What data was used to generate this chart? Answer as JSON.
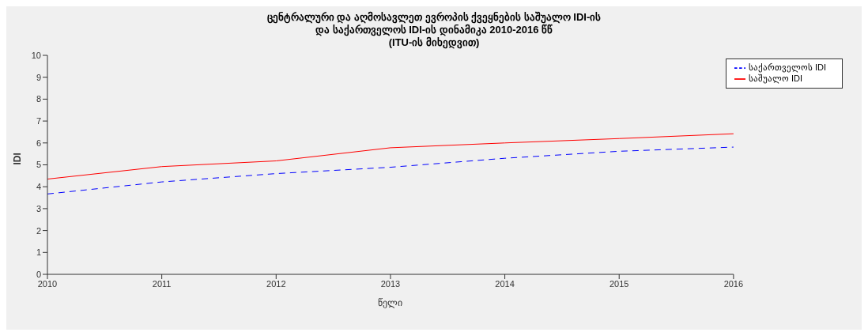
{
  "chart_data": {
    "type": "line",
    "title": "ცენტრალური და აღმოსავლეთ ევროპის ქვეყნების საშუალო IDI-ის\nდა საქართველოს  IDI-ის დინამიკა 2010-2016 წწ\n(ITU-ის მიხედვით)",
    "xlabel": "წელი",
    "ylabel": "IDI",
    "x": [
      2010,
      2011,
      2012,
      2013,
      2014,
      2015,
      2016
    ],
    "series": [
      {
        "name": "საშუალო IDI",
        "color": "#ff0000",
        "line_style": "solid",
        "values": [
          4.35,
          4.92,
          5.18,
          5.78,
          6.0,
          6.2,
          6.42
        ]
      },
      {
        "name": "საქართველოს  IDI",
        "color": "#0000ff",
        "line_style": "dashed",
        "values": [
          3.67,
          4.22,
          4.6,
          4.89,
          5.3,
          5.62,
          5.81
        ]
      }
    ],
    "xlim": [
      2010,
      2016
    ],
    "xticks": [
      2010,
      2011,
      2012,
      2013,
      2014,
      2015,
      2016
    ],
    "ylim": [
      0,
      10
    ],
    "yticks": [
      0,
      1,
      2,
      3,
      4,
      5,
      6,
      7,
      8,
      9,
      10
    ],
    "grid": false,
    "legend": "top right",
    "marker": "none"
  }
}
